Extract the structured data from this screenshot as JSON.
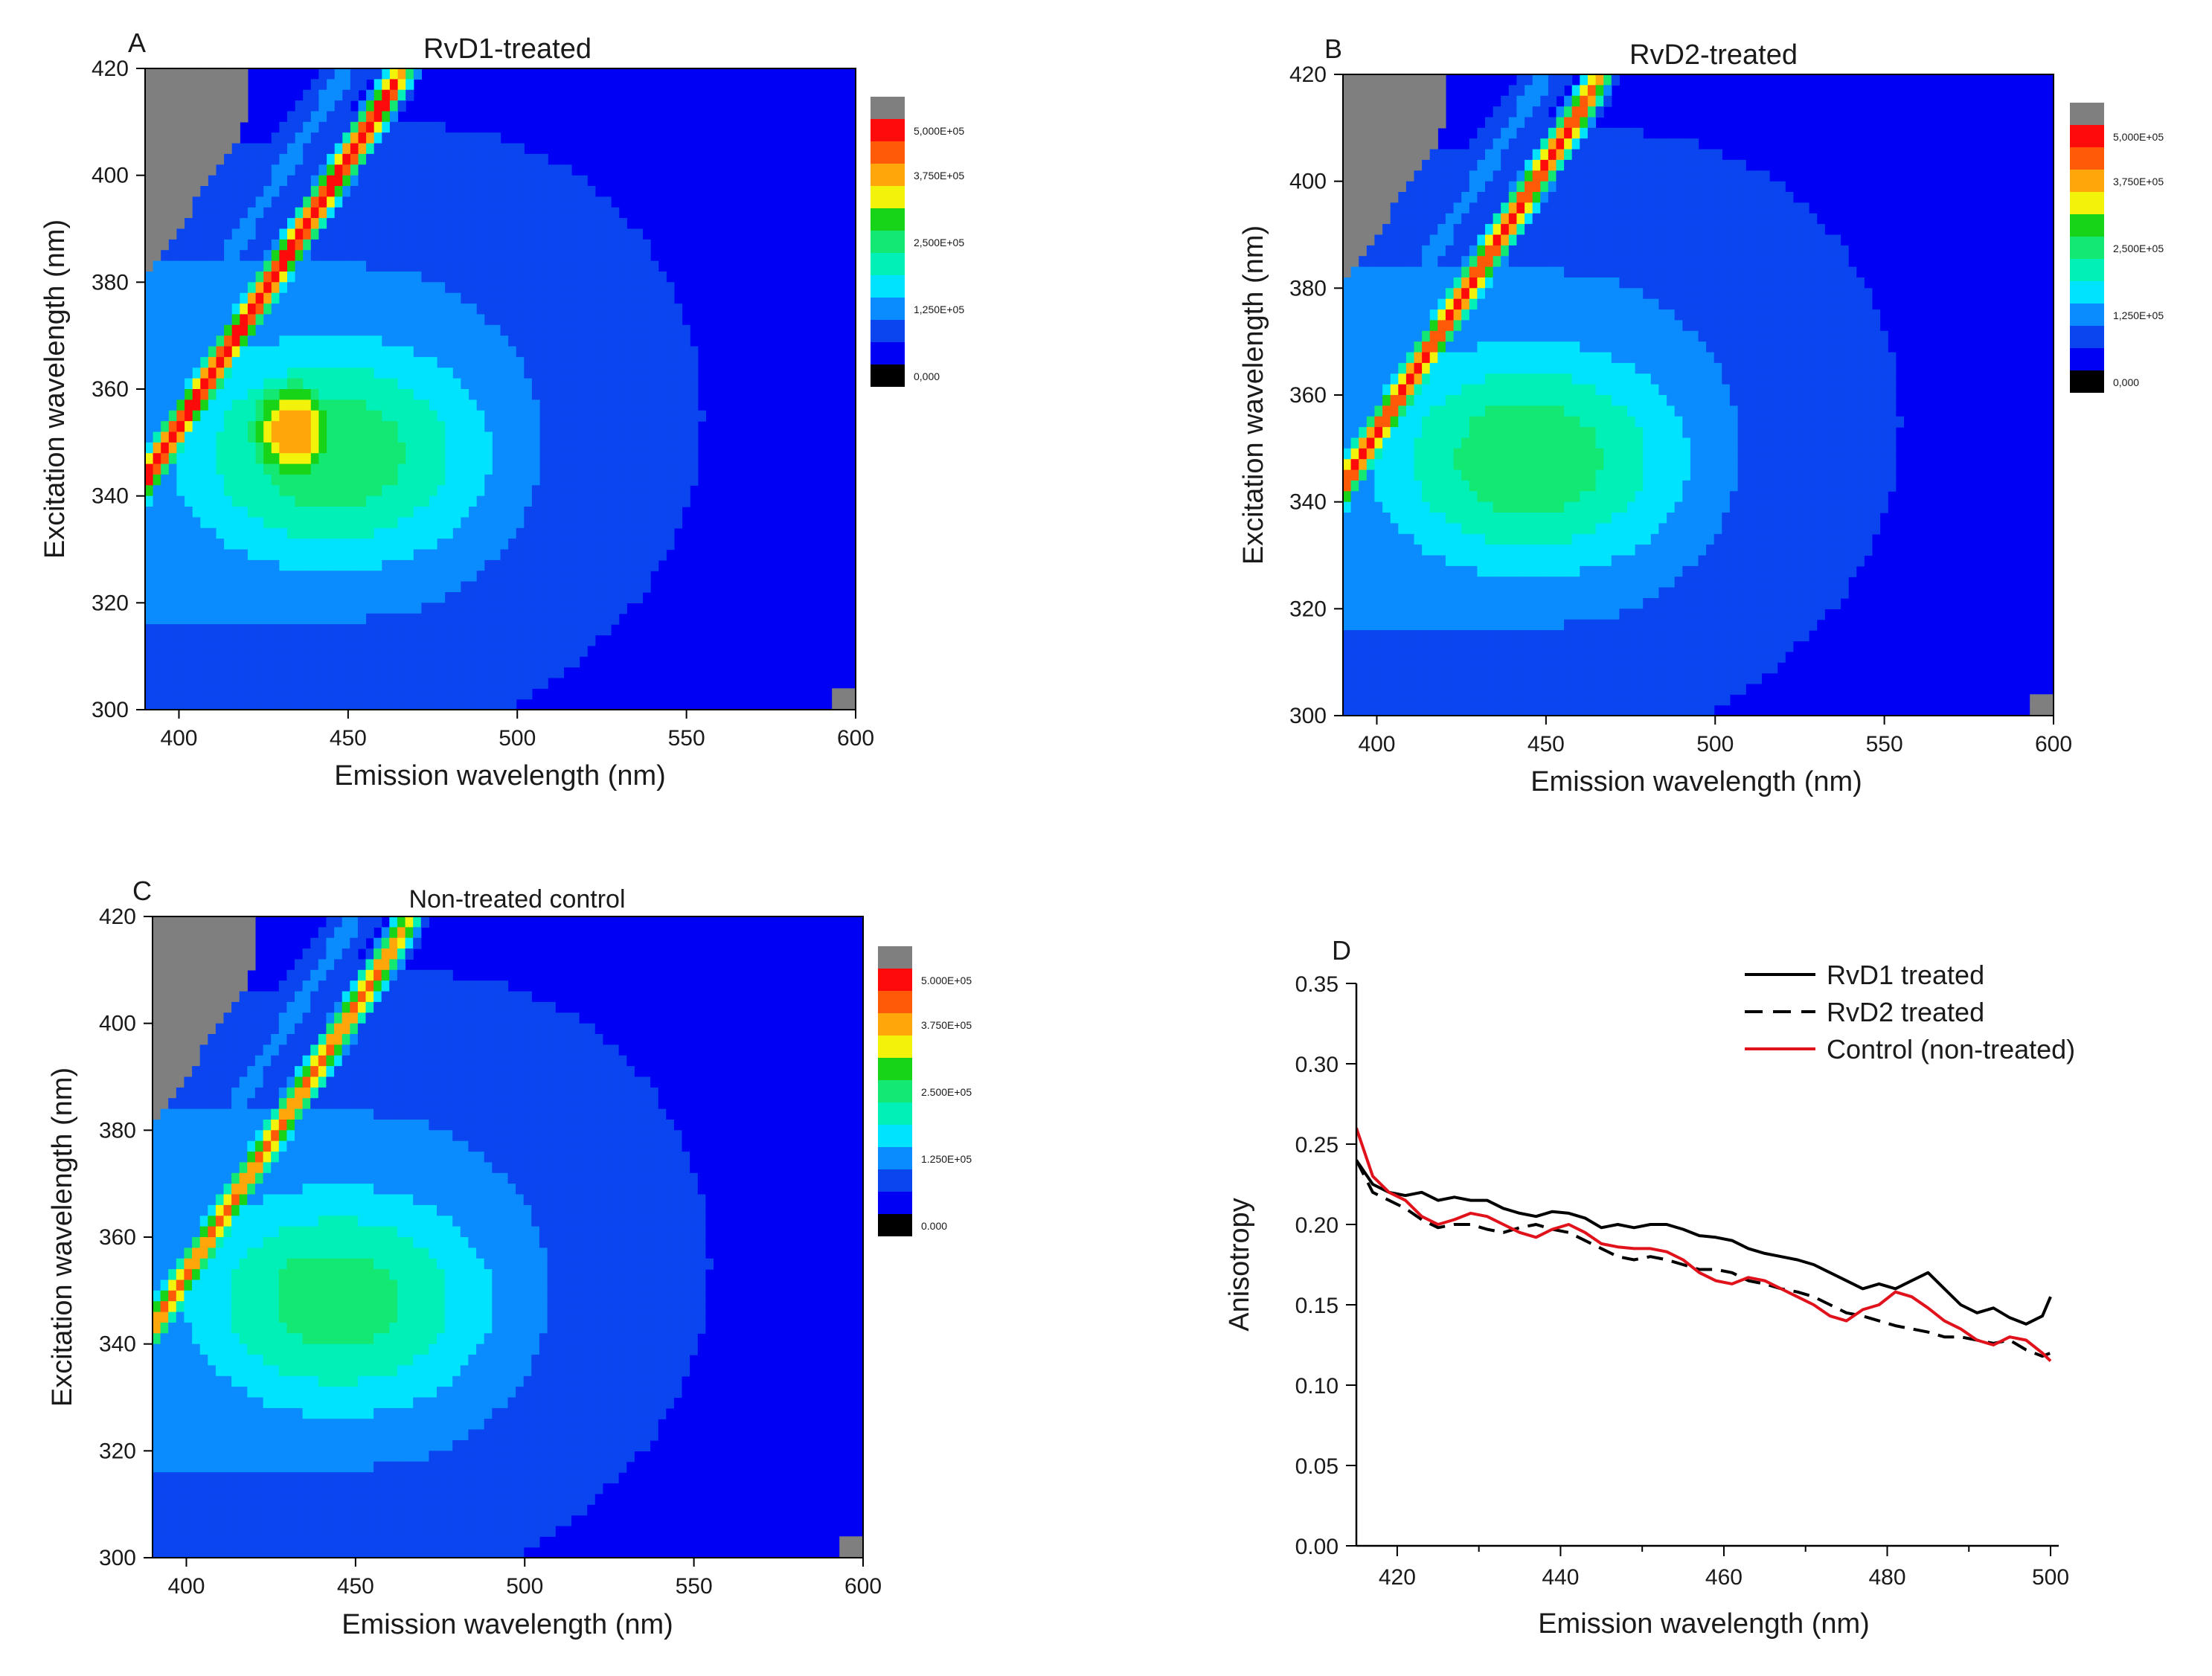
{
  "colors": {
    "levels": [
      "#000000",
      "#0000f5",
      "#0a45f0",
      "#0a8cff",
      "#00e3ff",
      "#00f0b8",
      "#13e873",
      "#18d418",
      "#f2f20a",
      "#ffa70a",
      "#ff5a08",
      "#ff0a0a",
      "#7f7f7f"
    ],
    "frame": "#000000",
    "rvd1_line": "#000000",
    "rvd2_line": "#000000",
    "control_line": "#e0121b"
  },
  "chart_data": [
    {
      "id": "A",
      "type": "heatmap",
      "panel_label": "A",
      "title": "RvD1-treated",
      "xlabel": "Emission wavelength (nm)",
      "ylabel": "Excitation wavelength (nm)",
      "xlim": [
        390,
        600
      ],
      "ylim": [
        300,
        420
      ],
      "xticks": [
        "400",
        "450",
        "500",
        "550",
        "600"
      ],
      "yticks": [
        "300",
        "320",
        "340",
        "360",
        "380",
        "400",
        "420"
      ],
      "colorbar": {
        "labels": [
          "5,000E+05",
          "3,750E+05",
          "2,500E+05",
          "1,250E+05",
          "0,000"
        ],
        "values": [
          500000,
          375000,
          250000,
          125000,
          0
        ]
      },
      "features": {
        "lobe_peak": 250000,
        "inner_peak": 375000,
        "ridge_peak": 460000,
        "saturated_corner": true
      }
    },
    {
      "id": "B",
      "type": "heatmap",
      "panel_label": "B",
      "title": "RvD2-treated",
      "xlabel": "Emission wavelength (nm)",
      "ylabel": "Excitation wavelength (nm)",
      "xlim": [
        390,
        600
      ],
      "ylim": [
        300,
        420
      ],
      "xticks": [
        "400",
        "450",
        "500",
        "550",
        "600"
      ],
      "yticks": [
        "300",
        "320",
        "340",
        "360",
        "380",
        "400",
        "420"
      ],
      "colorbar": {
        "labels": [
          "5,000E+05",
          "3,750E+05",
          "2,500E+05",
          "1,250E+05",
          "0,000"
        ],
        "values": [
          500000,
          375000,
          250000,
          125000,
          0
        ]
      },
      "features": {
        "lobe_peak": 250000,
        "inner_peak": 250000,
        "ridge_peak": 430000,
        "saturated_corner": true
      }
    },
    {
      "id": "C",
      "type": "heatmap",
      "panel_label": "C",
      "title": "Non-treated control",
      "xlabel": "Emission wavelength (nm)",
      "ylabel": "Excitation wavelength (nm)",
      "xlim": [
        390,
        600
      ],
      "ylim": [
        300,
        420
      ],
      "xticks": [
        "400",
        "450",
        "500",
        "550",
        "600"
      ],
      "yticks": [
        "300",
        "320",
        "340",
        "360",
        "380",
        "400",
        "420"
      ],
      "colorbar": {
        "labels": [
          "5.000E+05",
          "3.750E+05",
          "2.500E+05",
          "1.250E+05",
          "0.000"
        ],
        "values": [
          500000,
          375000,
          250000,
          125000,
          0
        ]
      },
      "features": {
        "lobe_peak": 240000,
        "inner_peak": 240000,
        "ridge_peak": 380000,
        "saturated_corner": true
      }
    },
    {
      "id": "D",
      "type": "line",
      "panel_label": "D",
      "title": "",
      "xlabel": "Emission wavelength (nm)",
      "ylabel": "Anisotropy",
      "xlim": [
        415,
        501
      ],
      "ylim": [
        0,
        0.35
      ],
      "xticks": [
        "420",
        "440",
        "460",
        "480",
        "500"
      ],
      "yticks": [
        "0.00",
        "0.05",
        "0.10",
        "0.15",
        "0.20",
        "0.25",
        "0.30",
        "0.35"
      ],
      "grid": false,
      "legend_position": "top-right",
      "series": [
        {
          "name": "RvD1 treated",
          "style": "solid",
          "x": [
            415,
            417,
            419,
            421,
            423,
            425,
            427,
            429,
            431,
            433,
            435,
            437,
            439,
            441,
            443,
            445,
            447,
            449,
            451,
            453,
            455,
            457,
            459,
            461,
            463,
            465,
            467,
            469,
            471,
            473,
            475,
            477,
            479,
            481,
            483,
            485,
            487,
            489,
            491,
            493,
            495,
            497,
            499,
            500
          ],
          "y": [
            0.24,
            0.225,
            0.22,
            0.218,
            0.22,
            0.215,
            0.217,
            0.215,
            0.215,
            0.21,
            0.207,
            0.205,
            0.208,
            0.207,
            0.204,
            0.198,
            0.2,
            0.198,
            0.2,
            0.2,
            0.197,
            0.193,
            0.192,
            0.19,
            0.185,
            0.182,
            0.18,
            0.178,
            0.175,
            0.17,
            0.165,
            0.16,
            0.163,
            0.16,
            0.165,
            0.17,
            0.16,
            0.15,
            0.145,
            0.148,
            0.142,
            0.138,
            0.143,
            0.155
          ]
        },
        {
          "name": "RvD2 treated",
          "style": "dashed",
          "x": [
            415,
            417,
            419,
            421,
            423,
            425,
            427,
            429,
            431,
            433,
            435,
            437,
            439,
            441,
            443,
            445,
            447,
            449,
            451,
            453,
            455,
            457,
            459,
            461,
            463,
            465,
            467,
            469,
            471,
            473,
            475,
            477,
            479,
            481,
            483,
            485,
            487,
            489,
            491,
            493,
            495,
            497,
            499,
            500
          ],
          "y": [
            0.24,
            0.22,
            0.215,
            0.21,
            0.203,
            0.198,
            0.2,
            0.2,
            0.197,
            0.195,
            0.198,
            0.2,
            0.197,
            0.195,
            0.19,
            0.185,
            0.18,
            0.178,
            0.18,
            0.178,
            0.175,
            0.172,
            0.172,
            0.17,
            0.165,
            0.163,
            0.16,
            0.158,
            0.155,
            0.15,
            0.145,
            0.143,
            0.14,
            0.137,
            0.135,
            0.133,
            0.13,
            0.13,
            0.128,
            0.126,
            0.128,
            0.122,
            0.118,
            0.12
          ]
        },
        {
          "name": "Control (non-treated)",
          "style": "solid",
          "x": [
            415,
            417,
            419,
            421,
            423,
            425,
            427,
            429,
            431,
            433,
            435,
            437,
            439,
            441,
            443,
            445,
            447,
            449,
            451,
            453,
            455,
            457,
            459,
            461,
            463,
            465,
            467,
            469,
            471,
            473,
            475,
            477,
            479,
            481,
            483,
            485,
            487,
            489,
            491,
            493,
            495,
            497,
            499,
            500
          ],
          "y": [
            0.26,
            0.23,
            0.22,
            0.215,
            0.205,
            0.2,
            0.203,
            0.207,
            0.205,
            0.2,
            0.195,
            0.192,
            0.197,
            0.2,
            0.195,
            0.188,
            0.186,
            0.185,
            0.185,
            0.183,
            0.178,
            0.17,
            0.165,
            0.163,
            0.167,
            0.165,
            0.16,
            0.155,
            0.15,
            0.143,
            0.14,
            0.147,
            0.15,
            0.158,
            0.155,
            0.148,
            0.14,
            0.135,
            0.128,
            0.125,
            0.13,
            0.128,
            0.12,
            0.115
          ]
        }
      ]
    }
  ]
}
